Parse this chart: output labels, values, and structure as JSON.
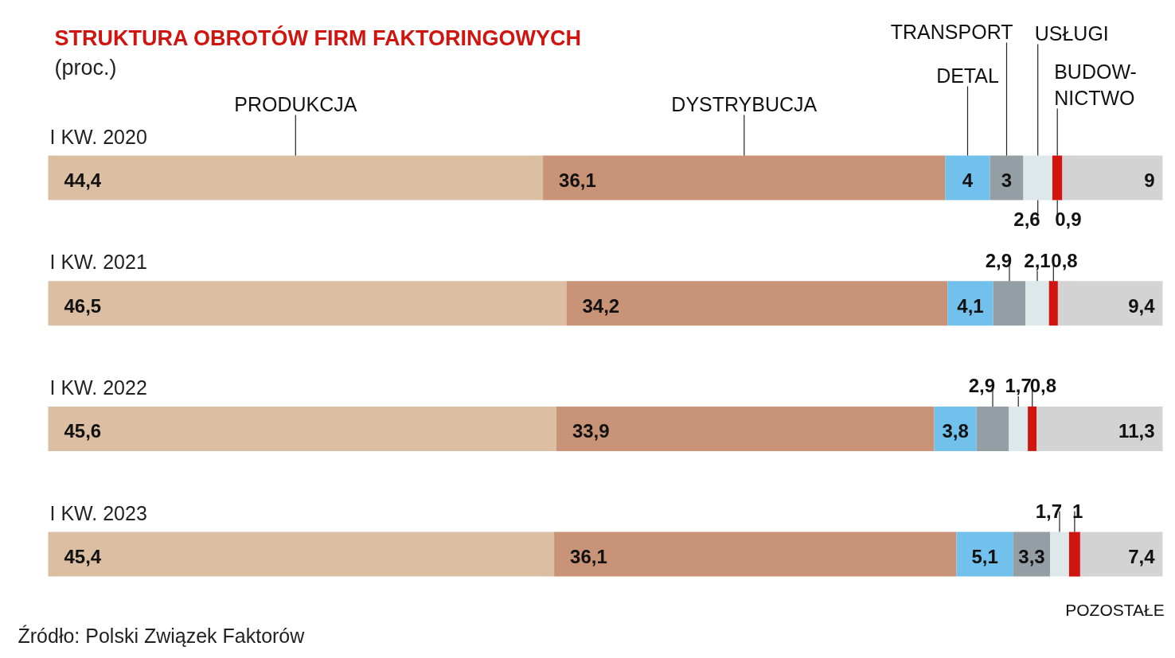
{
  "chart_data": {
    "type": "bar",
    "orientation": "horizontal",
    "stacked": true,
    "title": "STRUKTURA OBROTÓW FIRM FAKTORINGOWYCH",
    "subtitle": "(proc.)",
    "categories": [
      "I KW. 2020",
      "I KW. 2021",
      "I KW. 2022",
      "I KW. 2023"
    ],
    "series": [
      {
        "name": "PRODUKCJA",
        "color": "#dcbfa3",
        "values": [
          44.4,
          46.5,
          45.6,
          45.4
        ],
        "value_labels": [
          "44,4",
          "46,5",
          "45,6",
          "45,4"
        ]
      },
      {
        "name": "DYSTRYBUCJA",
        "color": "#c89377",
        "values": [
          36.1,
          34.2,
          33.9,
          36.1
        ],
        "value_labels": [
          "36,1",
          "34,2",
          "33,9",
          "36,1"
        ]
      },
      {
        "name": "DETAL",
        "color": "#72c1ec",
        "values": [
          4,
          4.1,
          3.8,
          5.1
        ],
        "value_labels": [
          "4",
          "4,1",
          "3,8",
          "5,1"
        ]
      },
      {
        "name": "TRANSPORT",
        "color": "#939ea5",
        "values": [
          3,
          2.9,
          2.9,
          3.3
        ],
        "value_labels": [
          "3",
          "2,9",
          "2,9",
          "3,3"
        ]
      },
      {
        "name": "USŁUGI",
        "color": "#dde8ea",
        "values": [
          2.6,
          2.1,
          1.7,
          1.7
        ],
        "value_labels": [
          "2,6",
          "2,1",
          "1,7",
          "1,7"
        ]
      },
      {
        "name": "BUDOW-\nNICTWO",
        "color": "#d0140f",
        "values": [
          0.9,
          0.8,
          0.8,
          1
        ],
        "value_labels": [
          "0,9",
          "0,8",
          "0,8",
          "1"
        ]
      },
      {
        "name": "POZOSTAŁE",
        "color": "#d3d3d3",
        "values": [
          9,
          9.4,
          11.3,
          7.4
        ],
        "value_labels": [
          "9",
          "9,4",
          "11,3",
          "7,4"
        ]
      }
    ],
    "annotations": [
      "Źródło: Polski Związek Faktorów"
    ]
  }
}
